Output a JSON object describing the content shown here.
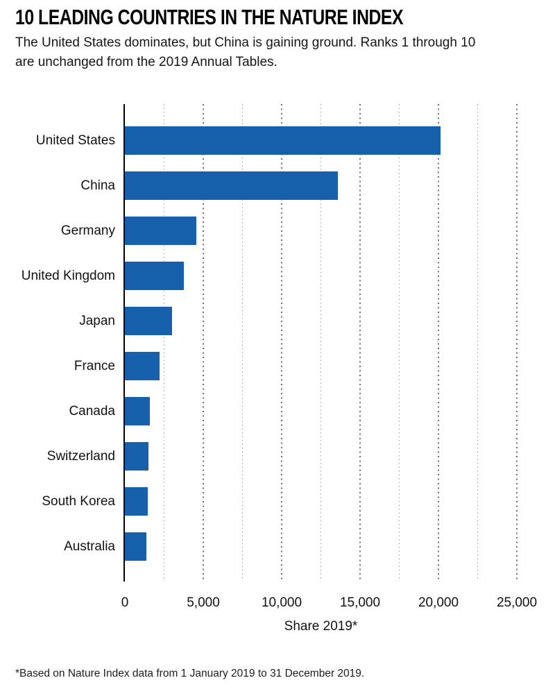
{
  "header": {
    "title": "10 LEADING COUNTRIES IN THE NATURE INDEX",
    "subtitle_line1": "The United States dominates, but China is gaining ground. Ranks 1 through 10",
    "subtitle_line2": "are unchanged from the 2019 Annual Tables."
  },
  "chart_data": {
    "type": "bar",
    "orientation": "horizontal",
    "title": "10 LEADING COUNTRIES IN THE NATURE INDEX",
    "categories": [
      "United States",
      "China",
      "Germany",
      "United Kingdom",
      "Japan",
      "France",
      "Canada",
      "Switzerland",
      "South Korea",
      "Australia"
    ],
    "values": [
      20152,
      13566,
      4546,
      3774,
      3024,
      2218,
      1582,
      1488,
      1445,
      1362
    ],
    "xlabel": "Share 2019*",
    "ylabel": "",
    "xlim": [
      0,
      25000
    ],
    "x_ticks": [
      0,
      5000,
      10000,
      15000,
      20000,
      25000
    ],
    "x_tick_labels": [
      "0",
      "5,000",
      "10,000",
      "15,000",
      "20,000",
      "25,000"
    ],
    "minor_grid_step": 2500,
    "grid": "vertical dotted, minor every 2500, major every 5000",
    "legend": "none"
  },
  "footnote": "*Based on Nature Index data from 1 January 2019 to 31 December 2019.",
  "colors": {
    "bar": "#1760ac",
    "axis": "#000000",
    "grid_major": "#6e6e6e",
    "grid_minor": "#9c9c9c",
    "background": "#ffffff",
    "text": "#111111"
  }
}
